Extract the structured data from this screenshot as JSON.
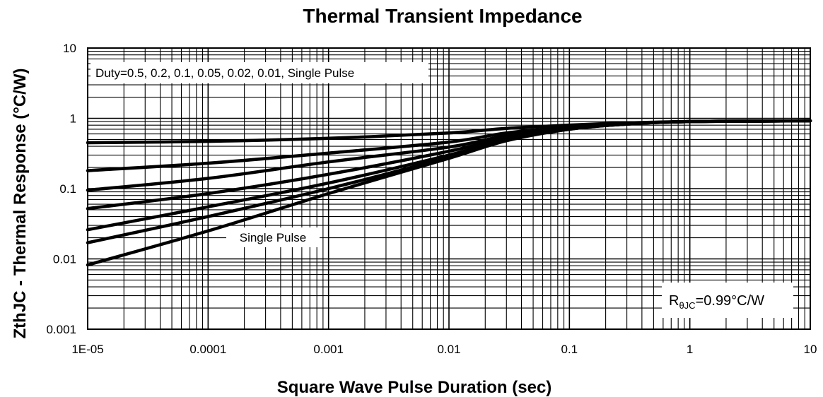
{
  "chart_data": {
    "type": "line",
    "title": "Thermal Transient Impedance",
    "xlabel": "Square Wave Pulse Duration (sec)",
    "ylabel": "ZthJC - Thermal Response (°C/W)",
    "xscale": "log",
    "yscale": "log",
    "xlim": [
      1e-05,
      10
    ],
    "ylim": [
      0.001,
      10
    ],
    "grid": true,
    "x_ticks": [
      "1E-05",
      "0.0001",
      "0.001",
      "0.01",
      "0.1",
      "1",
      "10"
    ],
    "y_ticks": [
      "10",
      "1",
      "0.1",
      "0.01",
      "0.001"
    ],
    "annotations": {
      "duty_label": "Duty=0.5, 0.2, 0.1, 0.05, 0.02, 0.01, Single Pulse",
      "single_pulse_label": "Single Pulse",
      "rth_symbol": "R",
      "rth_subscript": "θJC",
      "rth_value": "=0.99°C/W"
    },
    "x": [
      1e-05,
      0.0001,
      0.001,
      0.01,
      0.03,
      0.1,
      0.3,
      1,
      10
    ],
    "series": [
      {
        "duty": 0.5,
        "values": [
          0.45,
          0.47,
          0.52,
          0.62,
          0.72,
          0.8,
          0.86,
          0.9,
          0.92
        ]
      },
      {
        "duty": 0.2,
        "values": [
          0.18,
          0.23,
          0.32,
          0.46,
          0.62,
          0.75,
          0.84,
          0.9,
          0.92
        ]
      },
      {
        "duty": 0.1,
        "values": [
          0.095,
          0.14,
          0.24,
          0.39,
          0.57,
          0.73,
          0.84,
          0.9,
          0.92
        ]
      },
      {
        "duty": 0.05,
        "values": [
          0.052,
          0.085,
          0.16,
          0.34,
          0.53,
          0.72,
          0.83,
          0.9,
          0.92
        ]
      },
      {
        "duty": 0.02,
        "values": [
          0.026,
          0.055,
          0.12,
          0.3,
          0.5,
          0.71,
          0.83,
          0.9,
          0.92
        ]
      },
      {
        "duty": 0.01,
        "values": [
          0.017,
          0.04,
          0.1,
          0.28,
          0.49,
          0.7,
          0.83,
          0.9,
          0.92
        ]
      },
      {
        "name": "Single Pulse",
        "values": [
          0.0082,
          0.025,
          0.085,
          0.27,
          0.48,
          0.7,
          0.83,
          0.9,
          0.92
        ]
      }
    ]
  }
}
